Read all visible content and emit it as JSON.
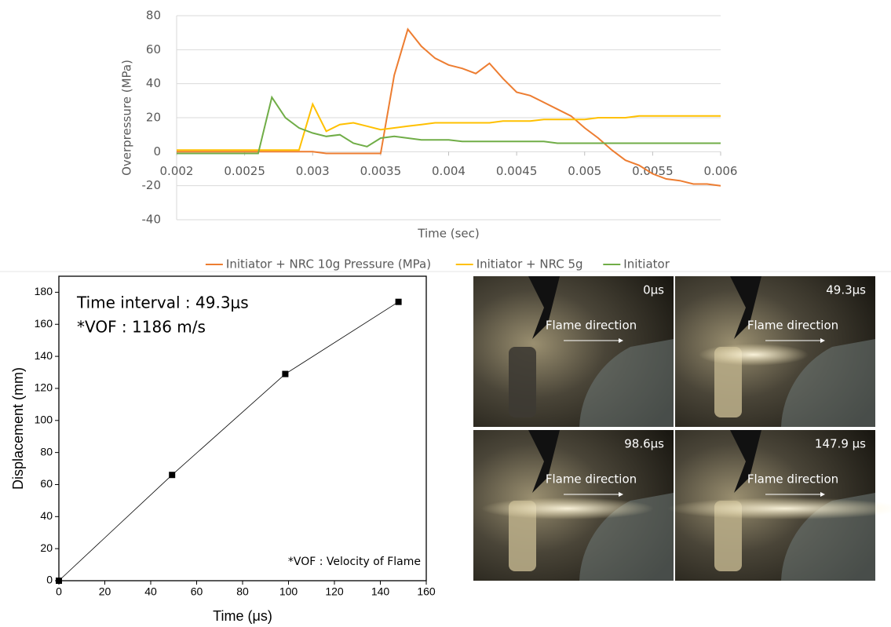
{
  "chart_data": [
    {
      "type": "line",
      "x_label": "Time (sec)",
      "y_label": "Overpressure (MPa)",
      "x": [
        0.002,
        0.0021,
        0.0022,
        0.0023,
        0.0024,
        0.0025,
        0.0026,
        0.0027,
        0.0028,
        0.0029,
        0.003,
        0.0031,
        0.0032,
        0.0033,
        0.0034,
        0.0035,
        0.0036,
        0.0037,
        0.0038,
        0.0039,
        0.004,
        0.0041,
        0.0042,
        0.0043,
        0.0044,
        0.0045,
        0.0046,
        0.0047,
        0.0048,
        0.0049,
        0.005,
        0.0051,
        0.0052,
        0.0053,
        0.0054,
        0.0055,
        0.0056,
        0.0057,
        0.0058,
        0.0059,
        0.006
      ],
      "series": [
        {
          "name": "Initiator + NRC 10g Pressure (MPa)",
          "color": "#ed7d31",
          "values": [
            0,
            0,
            0,
            0,
            0,
            0,
            0,
            0,
            0,
            0,
            0,
            -1,
            -1,
            -1,
            -1,
            -1,
            45,
            72,
            62,
            55,
            51,
            49,
            46,
            52,
            43,
            35,
            33,
            29,
            25,
            21,
            14,
            8,
            1,
            -5,
            -8,
            -13,
            -16,
            -17,
            -19,
            -19,
            -20
          ]
        },
        {
          "name": "Initiator + NRC 5g",
          "color": "#ffc000",
          "values": [
            1,
            1,
            1,
            1,
            1,
            1,
            1,
            1,
            1,
            1,
            28,
            12,
            16,
            17,
            15,
            13,
            14,
            15,
            16,
            17,
            17,
            17,
            17,
            17,
            18,
            18,
            18,
            19,
            19,
            19,
            19,
            20,
            20,
            20,
            21,
            21,
            21,
            21,
            21,
            21,
            21
          ]
        },
        {
          "name": "Initiator",
          "color": "#70ad47",
          "values": [
            -1,
            -1,
            -1,
            -1,
            -1,
            -1,
            -1,
            32,
            20,
            14,
            11,
            9,
            10,
            5,
            3,
            8,
            9,
            8,
            7,
            7,
            7,
            6,
            6,
            6,
            6,
            6,
            6,
            6,
            5,
            5,
            5,
            5,
            5,
            5,
            5,
            5,
            5,
            5,
            5,
            5,
            5
          ]
        }
      ],
      "xlim": [
        0.002,
        0.006
      ],
      "xticks": [
        0.002,
        0.0025,
        0.003,
        0.0035,
        0.004,
        0.0045,
        0.005,
        0.0055,
        0.006
      ],
      "ylim": [
        -40,
        80
      ],
      "yticks": [
        -40,
        -20,
        0,
        20,
        40,
        60,
        80
      ],
      "grid": true,
      "legend": "bottom"
    },
    {
      "type": "scatter",
      "x_label": "Time (μs)",
      "y_label": "Displacement (mm)",
      "x": [
        0,
        49.3,
        98.6,
        147.9
      ],
      "values": [
        0,
        66,
        129,
        174
      ],
      "color": "#000000",
      "xlim": [
        0,
        160
      ],
      "xticks": [
        0,
        20,
        40,
        60,
        80,
        100,
        120,
        140,
        160
      ],
      "ylim": [
        0,
        190
      ],
      "yticks": [
        0,
        20,
        40,
        60,
        80,
        100,
        120,
        140,
        160,
        180
      ],
      "annotations": [
        "Time interval : 49.3μs",
        "*VOF : 1186 m/s",
        "*VOF : Velocity of Flame"
      ]
    }
  ],
  "photos": [
    {
      "time": "0μs",
      "caption": "Flame direction"
    },
    {
      "time": "49.3μs",
      "caption": "Flame direction"
    },
    {
      "time": "98.6μs",
      "caption": "Flame direction"
    },
    {
      "time": "147.9 μs",
      "caption": "Flame direction"
    }
  ]
}
